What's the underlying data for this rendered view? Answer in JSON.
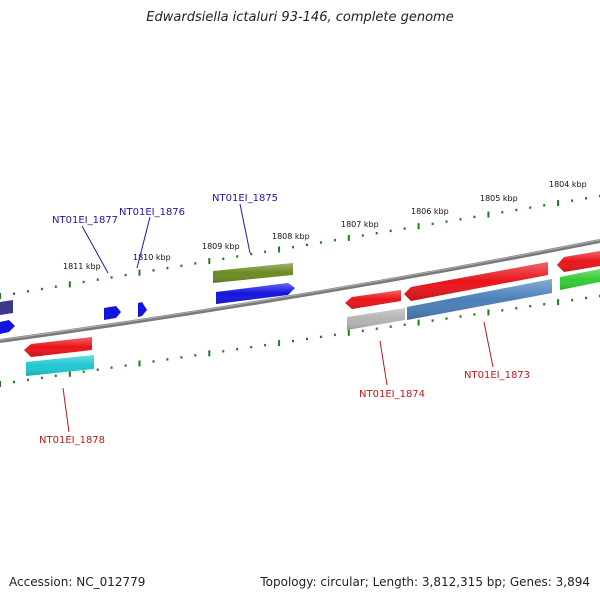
{
  "title": "Edwardsiella ictaluri 93-146, complete genome",
  "footer": {
    "accession": "Accession: NC_012779",
    "stats": "Topology: circular; Length: 3,812,315 bp; Genes: 3,894"
  },
  "ticks": [
    {
      "label": "1804 kbp"
    },
    {
      "label": "1805 kbp"
    },
    {
      "label": "1806 kbp"
    },
    {
      "label": "1807 kbp"
    },
    {
      "label": "1808 kbp"
    },
    {
      "label": "1809 kbp"
    },
    {
      "label": "1810 kbp"
    },
    {
      "label": "1811 kbp"
    }
  ],
  "genes": [
    {
      "name": "NT01EI_1873"
    },
    {
      "name": "NT01EI_1874"
    },
    {
      "name": "NT01EI_1875"
    },
    {
      "name": "NT01EI_1876"
    },
    {
      "name": "NT01EI_1877"
    },
    {
      "name": "NT01EI_1878"
    }
  ],
  "colors": {
    "backbone": "#7a7a7a",
    "tick": "#1f7a1f",
    "label_blue": "#1a1aa8",
    "label_red": "#c01818",
    "feature_red": "#e8141a",
    "feature_blue": "#1414e0",
    "feature_olive": "#6b8a22",
    "feature_cyan": "#1ec8d2",
    "feature_steel": "#4a7fb8",
    "feature_grey": "#b4b4b4",
    "feature_green": "#34cc34",
    "feature_navy": "#3a3a8a"
  }
}
